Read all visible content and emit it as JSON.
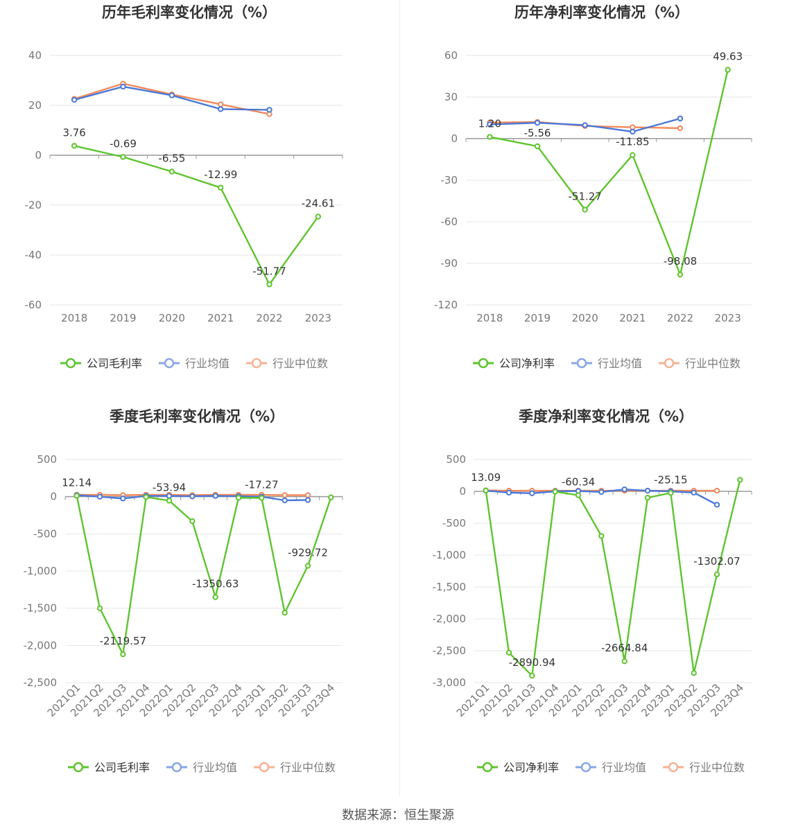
{
  "colors": {
    "company": "#5ec42e",
    "avg": "#4a78d8",
    "median": "#f28a5c"
  },
  "source": "数据来源：恒生聚源",
  "chart_data": [
    {
      "type": "line",
      "title": "历年毛利率变化情况（%）",
      "categories": [
        "2018",
        "2019",
        "2020",
        "2021",
        "2022",
        "2023"
      ],
      "ylim": [
        -60,
        40
      ],
      "yticks": [
        40,
        20,
        0,
        -20,
        -40,
        -60
      ],
      "rotate_x": false,
      "grid": true,
      "legend_position": "bottom",
      "series": [
        {
          "name": "公司毛利率",
          "key": "company",
          "values": [
            3.76,
            -0.69,
            -6.55,
            -12.99,
            -51.77,
            -24.61
          ],
          "labels": [
            "3.76",
            "-0.69",
            "-6.55",
            "-12.99",
            "-51.77",
            "-24.61"
          ]
        },
        {
          "name": "行业均值",
          "key": "avg",
          "values": [
            22.2,
            27.5,
            24.0,
            18.5,
            18.2,
            null
          ]
        },
        {
          "name": "行业中位数",
          "key": "median",
          "values": [
            22.6,
            28.7,
            24.4,
            20.4,
            16.5,
            null
          ]
        }
      ]
    },
    {
      "type": "line",
      "title": "历年净利率变化情况（%）",
      "categories": [
        "2018",
        "2019",
        "2020",
        "2021",
        "2022",
        "2023"
      ],
      "ylim": [
        -120,
        60
      ],
      "yticks": [
        60,
        30,
        0,
        -30,
        -60,
        -90,
        -120
      ],
      "rotate_x": false,
      "grid": true,
      "legend_position": "bottom",
      "series": [
        {
          "name": "公司净利率",
          "key": "company",
          "values": [
            1.2,
            -5.56,
            -51.27,
            -11.85,
            -98.08,
            49.63
          ],
          "labels": [
            "1.20",
            "-5.56",
            "-51.27",
            "-11.85",
            "-98.08",
            "49.63"
          ]
        },
        {
          "name": "行业均值",
          "key": "avg",
          "values": [
            10.2,
            11.4,
            9.7,
            5.0,
            14.5,
            null
          ]
        },
        {
          "name": "行业中位数",
          "key": "median",
          "values": [
            11.6,
            12.0,
            9.1,
            8.2,
            7.5,
            null
          ]
        }
      ]
    },
    {
      "type": "line",
      "title": "季度毛利率变化情况（%）",
      "categories": [
        "2021Q1",
        "2021Q2",
        "2021Q3",
        "2021Q4",
        "2022Q1",
        "2022Q2",
        "2022Q3",
        "2022Q4",
        "2023Q1",
        "2023Q2",
        "2023Q3",
        "2023Q4"
      ],
      "ylim": [
        -2500,
        500
      ],
      "yticks": [
        500,
        0,
        -500,
        -1000,
        -1500,
        -2000,
        -2500
      ],
      "ytick_labels": [
        "500",
        "0",
        "-500",
        "-1,000",
        "-1,500",
        "-2,000",
        "-2,500"
      ],
      "rotate_x": true,
      "grid": true,
      "legend_position": "bottom",
      "series": [
        {
          "name": "公司毛利率",
          "key": "company",
          "values": [
            12.14,
            -1500,
            -2119.57,
            -5,
            -53.94,
            -330,
            -1350.63,
            -15,
            -17.27,
            -1560,
            -929.72,
            -10
          ],
          "labels": [
            "12.14",
            "",
            "-2119.57",
            "",
            "-53.94",
            "",
            "-1350.63",
            "",
            "-17.27",
            "",
            "-929.72",
            ""
          ]
        },
        {
          "name": "行业均值",
          "key": "avg",
          "values": [
            20,
            0,
            -25,
            10,
            10,
            5,
            10,
            5,
            0,
            -50,
            -45,
            null
          ]
        },
        {
          "name": "行业中位数",
          "key": "median",
          "values": [
            25,
            25,
            20,
            25,
            25,
            20,
            25,
            25,
            25,
            20,
            20,
            null
          ]
        }
      ]
    },
    {
      "type": "line",
      "title": "季度净利率变化情况（%）",
      "categories": [
        "2021Q1",
        "2021Q2",
        "2021Q3",
        "2021Q4",
        "2022Q1",
        "2022Q2",
        "2022Q3",
        "2022Q4",
        "2023Q1",
        "2023Q2",
        "2023Q3",
        "2023Q4"
      ],
      "ylim": [
        -3000,
        500
      ],
      "yticks": [
        500,
        0,
        -500,
        -1000,
        -1500,
        -2000,
        -2500,
        -3000
      ],
      "ytick_labels": [
        "500",
        "0",
        "-500",
        "-1,000",
        "-1,500",
        "-2,000",
        "-2,500",
        "-3,000"
      ],
      "rotate_x": true,
      "grid": true,
      "legend_position": "bottom",
      "series": [
        {
          "name": "公司净利率",
          "key": "company",
          "values": [
            13.09,
            -2530,
            -2890.94,
            -5,
            -60.34,
            -700,
            -2664.84,
            -100,
            -25.15,
            -2850,
            -1302.07,
            180
          ],
          "labels": [
            "13.09",
            "",
            "-2890.94",
            "",
            "-60.34",
            "",
            "-2664.84",
            "",
            "-25.15",
            "",
            "-1302.07",
            ""
          ]
        },
        {
          "name": "行业均值",
          "key": "avg",
          "values": [
            10,
            -20,
            -30,
            0,
            5,
            -10,
            30,
            10,
            0,
            -20,
            -210,
            null
          ]
        },
        {
          "name": "行业中位数",
          "key": "median",
          "values": [
            15,
            10,
            10,
            10,
            10,
            10,
            10,
            10,
            10,
            10,
            10,
            null
          ]
        }
      ]
    }
  ]
}
